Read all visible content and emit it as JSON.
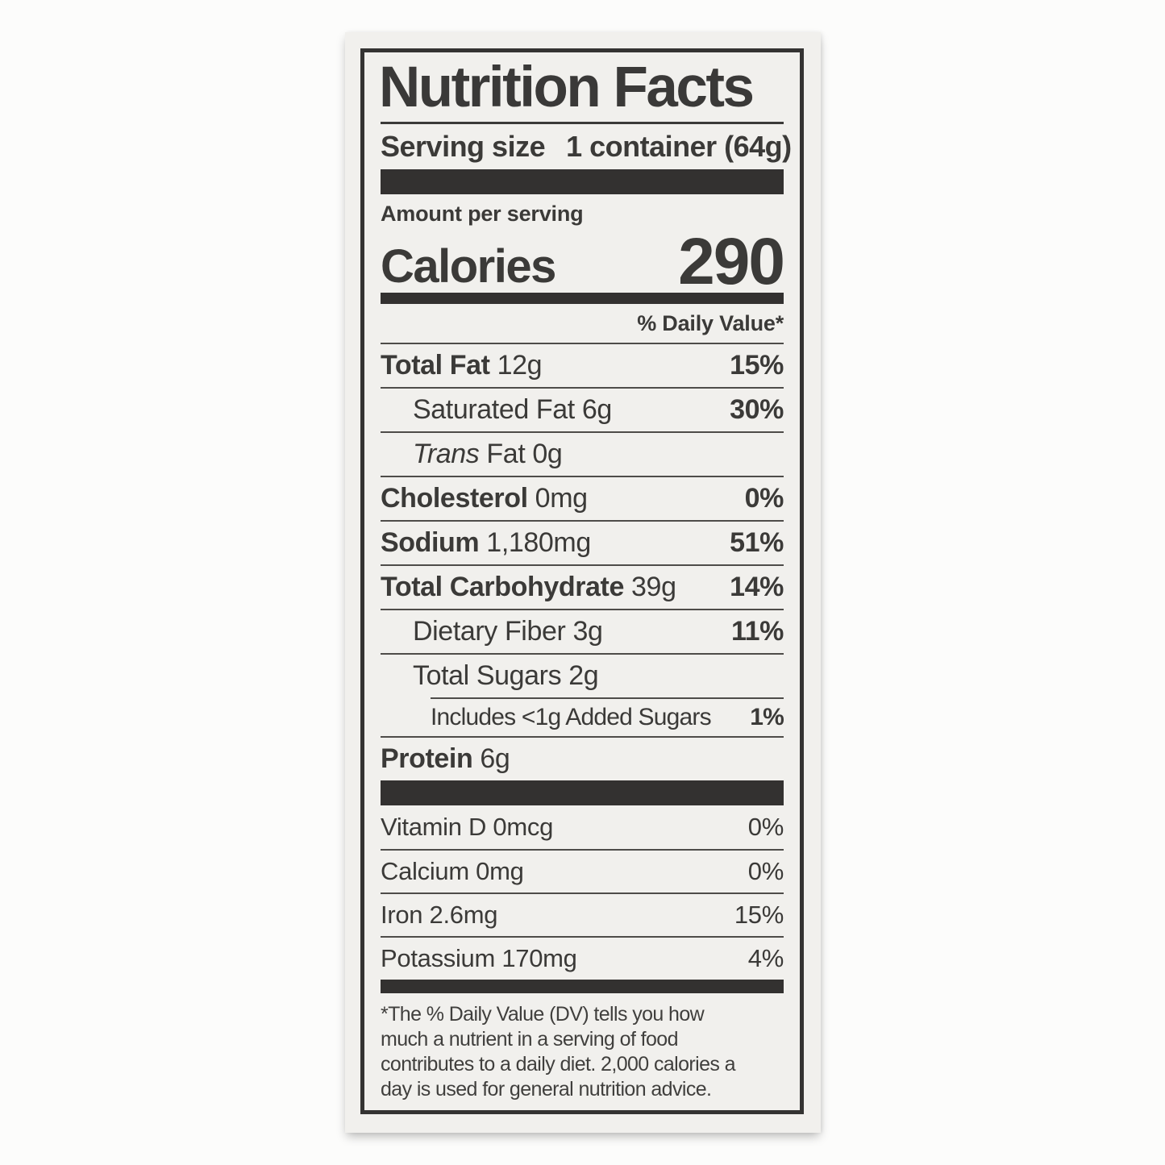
{
  "colors": {
    "ink": "#3b3a38",
    "card_background": "#f1f0ed",
    "page_background": "#fcfcfb",
    "bar": "#333130"
  },
  "label": {
    "title": "Nutrition Facts",
    "serving": {
      "label": "Serving size",
      "value": "1 container (64g)"
    },
    "amount_per_serving": "Amount per serving",
    "calories": {
      "label": "Calories",
      "value": "290"
    },
    "daily_value_header": "% Daily Value*",
    "nutrients": [
      {
        "parts": [
          {
            "t": "Total Fat",
            "b": 1
          },
          {
            "t": " 12g"
          }
        ],
        "dv": "15%",
        "indent": 0
      },
      {
        "parts": [
          {
            "t": "Saturated Fat 6g"
          }
        ],
        "dv": "30%",
        "indent": 1
      },
      {
        "parts": [
          {
            "t": "Trans",
            "i": 1
          },
          {
            "t": " Fat 0g"
          }
        ],
        "dv": "",
        "indent": 1
      },
      {
        "parts": [
          {
            "t": "Cholesterol",
            "b": 1
          },
          {
            "t": " 0mg"
          }
        ],
        "dv": "0%",
        "indent": 0
      },
      {
        "parts": [
          {
            "t": "Sodium",
            "b": 1
          },
          {
            "t": " 1,180mg"
          }
        ],
        "dv": "51%",
        "indent": 0
      },
      {
        "parts": [
          {
            "t": "Total Carbohydrate",
            "b": 1
          },
          {
            "t": " 39g"
          }
        ],
        "dv": "14%",
        "indent": 0
      },
      {
        "parts": [
          {
            "t": "Dietary Fiber 3g"
          }
        ],
        "dv": "11%",
        "indent": 1
      },
      {
        "parts": [
          {
            "t": "Total Sugars 2g"
          }
        ],
        "dv": "",
        "indent": 1
      },
      {
        "parts": [
          {
            "t": "Includes <1g Added Sugars"
          }
        ],
        "dv": "1%",
        "indent": 2
      },
      {
        "parts": [
          {
            "t": "Protein",
            "b": 1
          },
          {
            "t": " 6g"
          }
        ],
        "dv": "",
        "indent": 0
      }
    ],
    "vitamins": [
      {
        "name": "Vitamin D 0mcg",
        "dv": "0%"
      },
      {
        "name": "Calcium 0mg",
        "dv": "0%"
      },
      {
        "name": "Iron 2.6mg",
        "dv": "15%"
      },
      {
        "name": "Potassium 170mg",
        "dv": "4%"
      }
    ],
    "footnote_lines": [
      "*The % Daily Value (DV) tells you how",
      "much a nutrient in a serving of food",
      "contributes to a daily diet. 2,000 calories a",
      "day is used for general nutrition advice."
    ]
  }
}
